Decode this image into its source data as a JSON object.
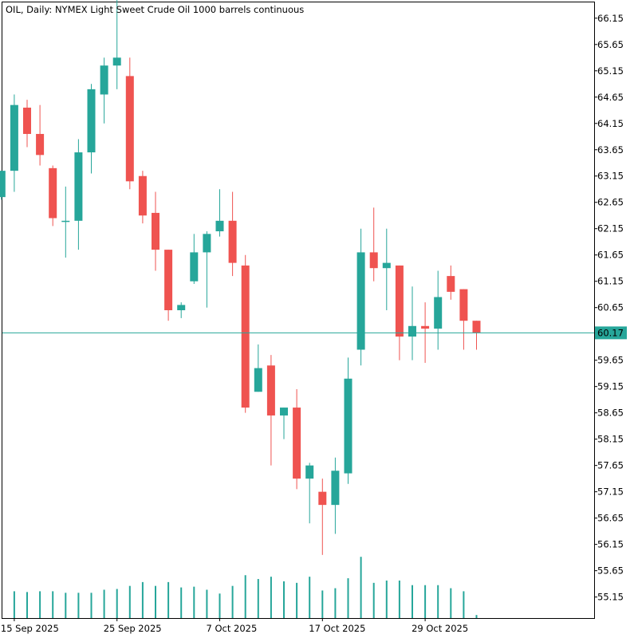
{
  "colors": {
    "up": "#26a69a",
    "down": "#ef5350",
    "axis": "#000000",
    "price_line": "#26a69a"
  },
  "chart_data": {
    "type": "candlestick",
    "title": "OIL, Daily:  NYMEX Light Sweet Crude Oil 1000 barrels continuous",
    "ylim": [
      54.75,
      66.45
    ],
    "y_ticks": [
      "66.15",
      "65.65",
      "65.15",
      "64.65",
      "64.15",
      "63.65",
      "63.15",
      "62.65",
      "62.15",
      "61.65",
      "61.15",
      "60.65",
      "60.15",
      "59.65",
      "59.15",
      "58.65",
      "58.15",
      "57.65",
      "57.15",
      "56.65",
      "56.15",
      "55.65",
      "55.15"
    ],
    "x_ticks": [
      {
        "label": "15 Sep 2025",
        "index": 1
      },
      {
        "label": "25 Sep 2025",
        "index": 9
      },
      {
        "label": "7 Oct 2025",
        "index": 17
      },
      {
        "label": "17 Oct 2025",
        "index": 25
      },
      {
        "label": "29 Oct 2025",
        "index": 33
      }
    ],
    "current_price": "60.17",
    "candles": [
      {
        "o": 62.75,
        "h": 63.25,
        "l": 62.7,
        "c": 63.25,
        "v": null
      },
      {
        "o": 63.25,
        "h": 64.7,
        "l": 62.85,
        "c": 64.5,
        "v": 0.35
      },
      {
        "o": 64.45,
        "h": 64.6,
        "l": 63.7,
        "c": 63.95,
        "v": 0.34
      },
      {
        "o": 63.95,
        "h": 64.5,
        "l": 63.35,
        "c": 63.55,
        "v": 0.35
      },
      {
        "o": 63.3,
        "h": 63.35,
        "l": 62.2,
        "c": 62.35,
        "v": 0.35
      },
      {
        "o": 62.3,
        "h": 62.95,
        "l": 61.6,
        "c": 62.3,
        "v": 0.33
      },
      {
        "o": 62.3,
        "h": 63.85,
        "l": 61.75,
        "c": 63.6,
        "v": 0.33
      },
      {
        "o": 63.6,
        "h": 64.9,
        "l": 63.2,
        "c": 64.8,
        "v": 0.33
      },
      {
        "o": 64.7,
        "h": 65.4,
        "l": 64.15,
        "c": 65.25,
        "v": 0.37
      },
      {
        "o": 65.25,
        "h": 66.7,
        "l": 64.8,
        "c": 65.4,
        "v": 0.38
      },
      {
        "o": 65.05,
        "h": 65.4,
        "l": 62.9,
        "c": 63.05,
        "v": 0.42
      },
      {
        "o": 63.15,
        "h": 63.25,
        "l": 62.25,
        "c": 62.4,
        "v": 0.47
      },
      {
        "o": 62.45,
        "h": 62.85,
        "l": 61.35,
        "c": 61.75,
        "v": 0.42
      },
      {
        "o": 61.75,
        "h": 61.75,
        "l": 60.4,
        "c": 60.6,
        "v": 0.47
      },
      {
        "o": 60.6,
        "h": 60.75,
        "l": 60.45,
        "c": 60.7,
        "v": 0.4
      },
      {
        "o": 61.15,
        "h": 62.05,
        "l": 61.1,
        "c": 61.7,
        "v": 0.41
      },
      {
        "o": 61.7,
        "h": 62.1,
        "l": 60.65,
        "c": 62.05,
        "v": 0.37
      },
      {
        "o": 62.1,
        "h": 62.9,
        "l": 62.0,
        "c": 62.3,
        "v": 0.32
      },
      {
        "o": 62.3,
        "h": 62.85,
        "l": 61.25,
        "c": 61.5,
        "v": 0.42
      },
      {
        "o": 61.45,
        "h": 61.65,
        "l": 58.65,
        "c": 58.75,
        "v": 0.56
      },
      {
        "o": 59.05,
        "h": 59.95,
        "l": 59.05,
        "c": 59.5,
        "v": 0.51
      },
      {
        "o": 59.55,
        "h": 59.75,
        "l": 57.65,
        "c": 58.6,
        "v": 0.54
      },
      {
        "o": 58.6,
        "h": 58.75,
        "l": 58.15,
        "c": 58.75,
        "v": 0.48
      },
      {
        "o": 58.75,
        "h": 59.1,
        "l": 57.2,
        "c": 57.4,
        "v": 0.46
      },
      {
        "o": 57.4,
        "h": 57.7,
        "l": 56.55,
        "c": 57.65,
        "v": 0.54
      },
      {
        "o": 57.15,
        "h": 57.4,
        "l": 55.95,
        "c": 56.9,
        "v": 0.36
      },
      {
        "o": 56.9,
        "h": 57.8,
        "l": 56.35,
        "c": 57.55,
        "v": 0.39
      },
      {
        "o": 57.5,
        "h": 59.7,
        "l": 57.3,
        "c": 59.3,
        "v": 0.52
      },
      {
        "o": 59.85,
        "h": 62.15,
        "l": 59.55,
        "c": 61.7,
        "v": 0.8
      },
      {
        "o": 61.7,
        "h": 62.55,
        "l": 61.15,
        "c": 61.4,
        "v": 0.46
      },
      {
        "o": 61.4,
        "h": 62.15,
        "l": 60.6,
        "c": 61.5,
        "v": 0.49
      },
      {
        "o": 61.45,
        "h": 61.45,
        "l": 59.65,
        "c": 60.1,
        "v": 0.49
      },
      {
        "o": 60.1,
        "h": 61.05,
        "l": 59.65,
        "c": 60.3,
        "v": 0.43
      },
      {
        "o": 60.3,
        "h": 60.75,
        "l": 59.6,
        "c": 60.25,
        "v": 0.43
      },
      {
        "o": 60.25,
        "h": 61.35,
        "l": 59.85,
        "c": 60.85,
        "v": 0.43
      },
      {
        "o": 61.25,
        "h": 61.45,
        "l": 60.8,
        "c": 60.95,
        "v": 0.39
      },
      {
        "o": 61.0,
        "h": 61.0,
        "l": 59.85,
        "c": 60.4,
        "v": 0.35
      },
      {
        "o": 60.4,
        "h": 60.4,
        "l": 59.85,
        "c": 60.17,
        "v": 0.04
      }
    ]
  }
}
